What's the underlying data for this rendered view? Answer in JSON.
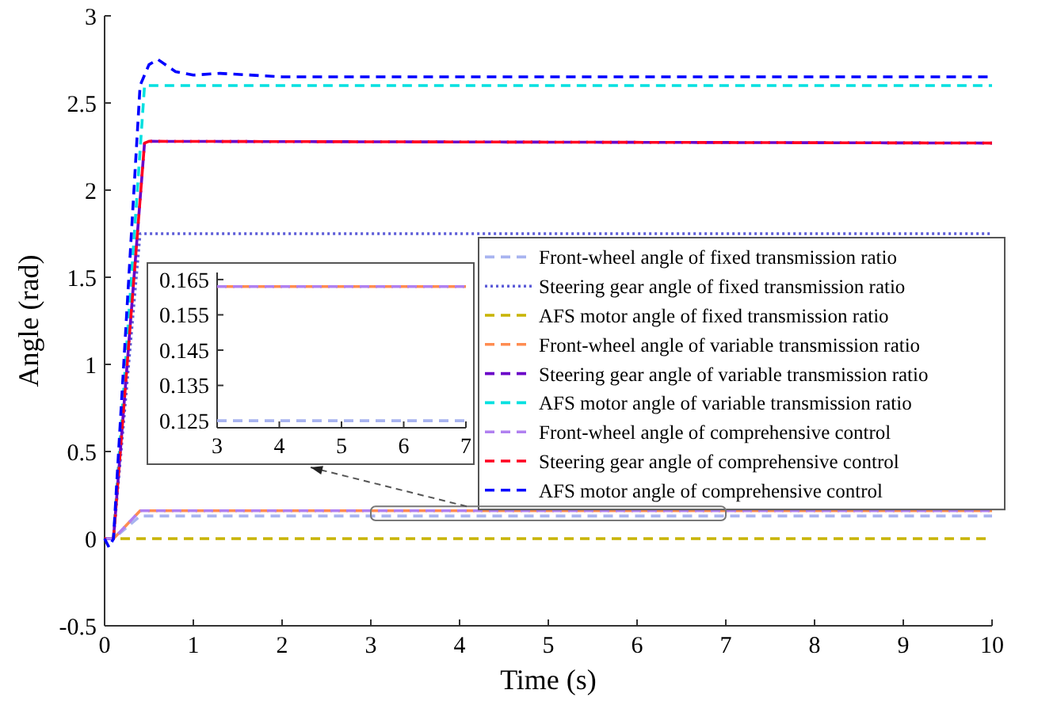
{
  "chart_data": [
    {
      "type": "line",
      "xlabel": "Time (s)",
      "ylabel": "Angle (rad)",
      "xlim": [
        0,
        10
      ],
      "ylim": [
        -0.5,
        3
      ],
      "xticks": [
        0,
        1,
        2,
        3,
        4,
        5,
        6,
        7,
        8,
        9,
        10
      ],
      "yticks": [
        -0.5,
        0,
        0.5,
        1,
        1.5,
        2,
        2.5,
        3
      ],
      "legend": "right",
      "marker": "none",
      "series": [
        {
          "name": "Front-wheel angle of fixed transmission ratio",
          "color": "#a8b4f0",
          "line_style": "dashed",
          "x": [
            0,
            0.1,
            0.4,
            10
          ],
          "values": [
            0,
            0,
            0.13,
            0.13
          ]
        },
        {
          "name": "Steering gear angle of fixed transmission ratio",
          "color": "#5c5cd8",
          "line_style": "dotted",
          "x": [
            0,
            0.1,
            0.4,
            10
          ],
          "values": [
            0,
            0,
            1.75,
            1.75
          ]
        },
        {
          "name": "AFS motor angle of fixed transmission ratio",
          "color": "#c8b400",
          "line_style": "dashed",
          "x": [
            0,
            10
          ],
          "values": [
            0,
            0
          ]
        },
        {
          "name": "Front-wheel angle of variable transmission ratio",
          "color": "#ff8c50",
          "line_style": "dashed",
          "x": [
            0,
            0.1,
            0.4,
            10
          ],
          "values": [
            0,
            0,
            0.16,
            0.16
          ]
        },
        {
          "name": "Steering gear angle of variable transmission ratio",
          "color": "#6a00c8",
          "line_style": "dashed",
          "x": [
            0,
            0.1,
            0.45,
            0.5,
            10
          ],
          "values": [
            0,
            0,
            2.27,
            2.28,
            2.27
          ]
        },
        {
          "name": "AFS motor angle of variable transmission ratio",
          "color": "#00e0e0",
          "line_style": "dashed",
          "x": [
            0,
            0.1,
            0.45,
            10
          ],
          "values": [
            0,
            0,
            2.6,
            2.6
          ]
        },
        {
          "name": "Front-wheel angle of comprehensive control",
          "color": "#b080f0",
          "line_style": "dashed",
          "x": [
            0,
            0.1,
            0.4,
            10
          ],
          "values": [
            0,
            0,
            0.16,
            0.16
          ]
        },
        {
          "name": "Steering gear angle of comprehensive control",
          "color": "#ff0020",
          "line_style": "dashed",
          "x": [
            0,
            0.1,
            0.45,
            0.5,
            10
          ],
          "values": [
            0,
            0,
            2.27,
            2.28,
            2.27
          ]
        },
        {
          "name": "AFS motor angle of comprehensive control",
          "color": "#0000ff",
          "line_style": "dashed",
          "x": [
            0,
            0.05,
            0.1,
            0.4,
            0.5,
            0.6,
            0.8,
            1,
            1.3,
            2,
            10
          ],
          "values": [
            0,
            -0.05,
            0,
            2.6,
            2.72,
            2.75,
            2.68,
            2.66,
            2.67,
            2.65,
            2.65
          ]
        }
      ]
    },
    {
      "type": "line",
      "xlim": [
        3,
        7
      ],
      "ylim": [
        0.123,
        0.167
      ],
      "xticks": [
        3,
        4,
        5,
        6,
        7
      ],
      "yticks": [
        0.125,
        0.135,
        0.145,
        0.155,
        0.165
      ],
      "legend": false,
      "marker": "none",
      "series": [
        {
          "color": "#a8b4f0",
          "line_style": "dashed",
          "x": [
            3,
            7
          ],
          "values": [
            0.125,
            0.125
          ]
        },
        {
          "color": "#ff8c50",
          "line_style": "dashed",
          "x": [
            3,
            7
          ],
          "values": [
            0.163,
            0.163
          ]
        },
        {
          "color": "#b080f0",
          "line_style": "dashed",
          "x": [
            3,
            7
          ],
          "values": [
            0.163,
            0.163
          ]
        }
      ]
    }
  ]
}
